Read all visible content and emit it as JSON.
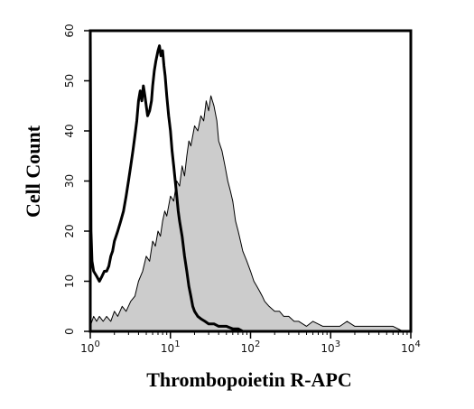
{
  "chart_data": {
    "type": "area",
    "title": "",
    "xlabel": "Thrombopoietin R-APC",
    "ylabel": "Cell Count",
    "x_scale": "log",
    "xlim": [
      1,
      10000
    ],
    "ylim": [
      0,
      60
    ],
    "x_ticks": [
      {
        "value": 1,
        "base": "10",
        "exp": "0"
      },
      {
        "value": 10,
        "base": "10",
        "exp": "1"
      },
      {
        "value": 100,
        "base": "10",
        "exp": "2"
      },
      {
        "value": 1000,
        "base": "10",
        "exp": "3"
      },
      {
        "value": 10000,
        "base": "10",
        "exp": "4"
      }
    ],
    "y_ticks": [
      "0",
      "10",
      "20",
      "30",
      "40",
      "50",
      "60"
    ],
    "grid": false,
    "legend": "none",
    "series": [
      {
        "style": "filled",
        "fill_color": "#cccccc",
        "line_color": "#000000",
        "points": [
          [
            1.0,
            1
          ],
          [
            1.1,
            3
          ],
          [
            1.2,
            2
          ],
          [
            1.3,
            3
          ],
          [
            1.45,
            2
          ],
          [
            1.6,
            3
          ],
          [
            1.8,
            2
          ],
          [
            2.0,
            4
          ],
          [
            2.2,
            3
          ],
          [
            2.5,
            5
          ],
          [
            2.8,
            4
          ],
          [
            3.2,
            6
          ],
          [
            3.6,
            7
          ],
          [
            4.0,
            10
          ],
          [
            4.5,
            12
          ],
          [
            5.0,
            15
          ],
          [
            5.5,
            14
          ],
          [
            6.0,
            18
          ],
          [
            6.5,
            17
          ],
          [
            7.0,
            20
          ],
          [
            7.5,
            19
          ],
          [
            8.0,
            22
          ],
          [
            8.5,
            24
          ],
          [
            9.0,
            23
          ],
          [
            10,
            27
          ],
          [
            11,
            26
          ],
          [
            12,
            30
          ],
          [
            13,
            29
          ],
          [
            14,
            33
          ],
          [
            15,
            31
          ],
          [
            16,
            35
          ],
          [
            17,
            38
          ],
          [
            18,
            37
          ],
          [
            20,
            41
          ],
          [
            22,
            40
          ],
          [
            24,
            43
          ],
          [
            26,
            42
          ],
          [
            28,
            46
          ],
          [
            30,
            44
          ],
          [
            32,
            47
          ],
          [
            35,
            45
          ],
          [
            38,
            42
          ],
          [
            40,
            38
          ],
          [
            44,
            36
          ],
          [
            48,
            33
          ],
          [
            52,
            30
          ],
          [
            56,
            28
          ],
          [
            60,
            26
          ],
          [
            65,
            22
          ],
          [
            70,
            20
          ],
          [
            75,
            18
          ],
          [
            80,
            16
          ],
          [
            90,
            14
          ],
          [
            100,
            12
          ],
          [
            110,
            10
          ],
          [
            120,
            9
          ],
          [
            130,
            8
          ],
          [
            140,
            7
          ],
          [
            150,
            6
          ],
          [
            170,
            5
          ],
          [
            200,
            4
          ],
          [
            230,
            4
          ],
          [
            260,
            3
          ],
          [
            300,
            3
          ],
          [
            350,
            2
          ],
          [
            400,
            2
          ],
          [
            500,
            1
          ],
          [
            600,
            2
          ],
          [
            800,
            1
          ],
          [
            1000,
            1
          ],
          [
            1300,
            1
          ],
          [
            1600,
            2
          ],
          [
            2000,
            1
          ],
          [
            2500,
            1
          ],
          [
            3000,
            1
          ],
          [
            4000,
            1
          ],
          [
            5000,
            1
          ],
          [
            6000,
            1
          ],
          [
            8000,
            0
          ]
        ]
      },
      {
        "style": "outline",
        "fill_color": "none",
        "line_color": "#000000",
        "points": [
          [
            1.0,
            60
          ],
          [
            1.02,
            20
          ],
          [
            1.05,
            14
          ],
          [
            1.1,
            12
          ],
          [
            1.2,
            11
          ],
          [
            1.3,
            10
          ],
          [
            1.4,
            11
          ],
          [
            1.5,
            12
          ],
          [
            1.6,
            12
          ],
          [
            1.7,
            13
          ],
          [
            1.8,
            15
          ],
          [
            1.9,
            16
          ],
          [
            2.0,
            18
          ],
          [
            2.2,
            20
          ],
          [
            2.4,
            22
          ],
          [
            2.6,
            24
          ],
          [
            2.8,
            27
          ],
          [
            3.0,
            30
          ],
          [
            3.2,
            33
          ],
          [
            3.4,
            36
          ],
          [
            3.6,
            39
          ],
          [
            3.8,
            42
          ],
          [
            4.0,
            46
          ],
          [
            4.2,
            48
          ],
          [
            4.4,
            46
          ],
          [
            4.6,
            49
          ],
          [
            4.8,
            47
          ],
          [
            5.0,
            45
          ],
          [
            5.2,
            43
          ],
          [
            5.5,
            44
          ],
          [
            5.8,
            46
          ],
          [
            6.0,
            49
          ],
          [
            6.3,
            52
          ],
          [
            6.6,
            54
          ],
          [
            7.0,
            56
          ],
          [
            7.3,
            57
          ],
          [
            7.6,
            55
          ],
          [
            8.0,
            56
          ],
          [
            8.3,
            53
          ],
          [
            8.6,
            51
          ],
          [
            9.0,
            47
          ],
          [
            9.5,
            43
          ],
          [
            10,
            40
          ],
          [
            10.5,
            36
          ],
          [
            11,
            33
          ],
          [
            11.5,
            30
          ],
          [
            12,
            27
          ],
          [
            12.5,
            24
          ],
          [
            13,
            22
          ],
          [
            14,
            19
          ],
          [
            15,
            15
          ],
          [
            16,
            12
          ],
          [
            17,
            9
          ],
          [
            18,
            7
          ],
          [
            19,
            5
          ],
          [
            20,
            4
          ],
          [
            22,
            3
          ],
          [
            24,
            2.5
          ],
          [
            27,
            2
          ],
          [
            30,
            1.5
          ],
          [
            35,
            1.5
          ],
          [
            40,
            1
          ],
          [
            45,
            1
          ],
          [
            50,
            1
          ],
          [
            60,
            0.5
          ],
          [
            70,
            0.5
          ],
          [
            80,
            0
          ]
        ]
      }
    ]
  }
}
